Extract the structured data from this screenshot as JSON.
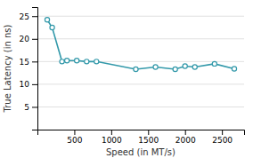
{
  "chart_data": {
    "type": "line",
    "x": [
      133,
      200,
      333,
      400,
      533,
      667,
      800,
      1333,
      1600,
      1867,
      2000,
      2133,
      2400,
      2667
    ],
    "values": [
      24.2,
      22.5,
      15.0,
      15.2,
      15.2,
      15.0,
      15.0,
      13.3,
      13.8,
      13.3,
      14.0,
      13.8,
      14.5,
      13.4
    ],
    "color": "#3399aa",
    "marker": "circle",
    "xlabel": "Speed (in MT/s)",
    "ylabel": "True Latency (in ns)",
    "xlim": [
      0,
      2800
    ],
    "ylim": [
      0,
      27
    ],
    "xticks": [
      500,
      1000,
      1500,
      2000,
      2500
    ],
    "yticks": [
      5,
      10,
      15,
      20,
      25
    ],
    "grid": true
  }
}
